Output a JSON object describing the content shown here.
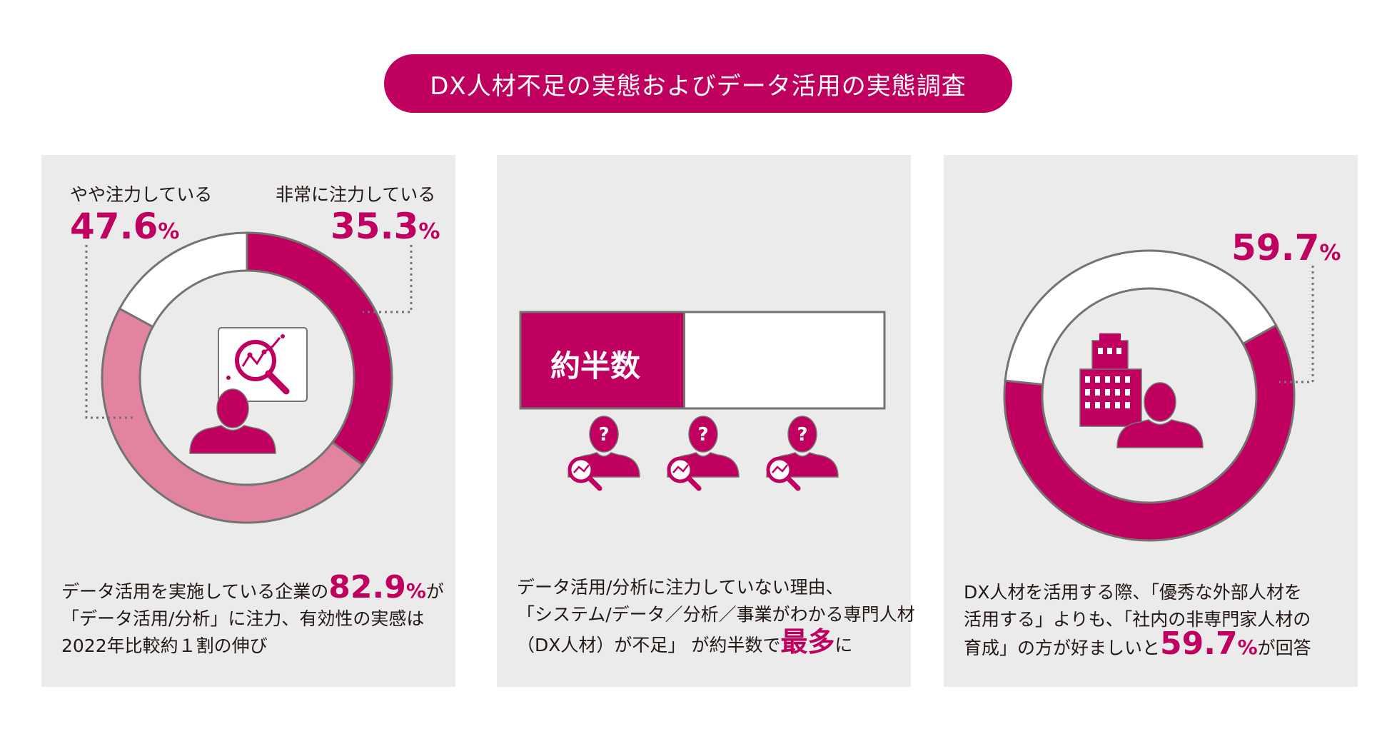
{
  "title": "DX人材不足の実態およびデータ活用の実態調査",
  "colors": {
    "brand": "#c0005f",
    "brand_light": "#e2849f",
    "panel_bg": "#ebebeb",
    "outline": "#737373"
  },
  "panel1": {
    "label_left": "やや注力している",
    "value_left": "47.6",
    "label_right": "非常に注力している",
    "value_right": "35.3",
    "unit": "%",
    "icon": "person-with-magnifier-speech-bubble-icon",
    "caption_line1_pre": "データ活用を実施している企業の",
    "caption_line1_value": "82.9",
    "caption_line1_post": "が",
    "caption_line2": "「データ活用/分析」に注力、有効性の実感は",
    "caption_line3": "2022年比較約１割の伸び"
  },
  "panel2": {
    "bar_label": "約半数",
    "bar_fraction": 0.45,
    "icons": [
      "person-question-magnifier-icon",
      "person-question-magnifier-icon",
      "person-question-magnifier-icon"
    ],
    "caption_line1": "データ活用/分析に注力していない理由、",
    "caption_line2": "「システム/データ／分析／事業がわかる専門人材",
    "caption_line3_pre": "（DX人材）が不足」 が約半数で",
    "caption_line3_hl": "最多",
    "caption_line3_post": "に"
  },
  "panel3": {
    "value": "59.7",
    "unit": "%",
    "icon": "building-and-person-icon",
    "caption_line1": "DX人材を活用する際、「優秀な外部人材を",
    "caption_line2": "活用する」よりも、「社内の非専門家人材の",
    "caption_line3_pre": "育成」の方が好ましいと",
    "caption_line3_value": "59.7",
    "caption_line3_post": "が回答"
  },
  "chart_data": [
    {
      "type": "pie",
      "donut": true,
      "slices": [
        {
          "label": "非常に注力している",
          "value": 35.3,
          "color": "#c0005f"
        },
        {
          "label": "やや注力している",
          "value": 47.6,
          "color": "#e2849f"
        },
        {
          "label": "",
          "value": 17.1,
          "color": "#ffffff"
        }
      ]
    },
    {
      "type": "bar",
      "categories": [
        "約半数"
      ],
      "values": [
        0.45
      ],
      "note": "filled share of the horizontal bar"
    },
    {
      "type": "pie",
      "donut": true,
      "slices": [
        {
          "label": "59.7%",
          "value": 59.7,
          "color": "#c0005f"
        },
        {
          "label": "",
          "value": 40.3,
          "color": "#ffffff"
        }
      ]
    }
  ]
}
